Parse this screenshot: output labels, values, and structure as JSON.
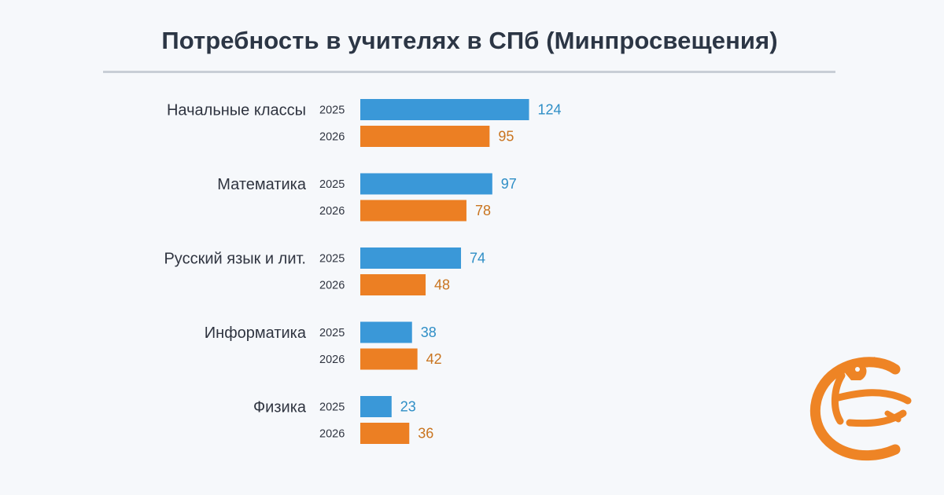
{
  "chart_data": {
    "type": "bar",
    "orientation": "horizontal",
    "title": "Потребность в учителях в СПб (Минпросвещения)",
    "categories": [
      "Начальные классы",
      "Математика",
      "Русский язык и лит.",
      "Информатика",
      "Физика"
    ],
    "series": [
      {
        "year_label": "2025",
        "color": "#3a98d8",
        "label_color": "#2e8ec6",
        "values": [
          124,
          97,
          74,
          38,
          23
        ]
      },
      {
        "year_label": "2026",
        "color": "#ec7f23",
        "label_color": "#c9741f",
        "values": [
          95,
          78,
          48,
          42,
          36
        ]
      }
    ],
    "grid": false,
    "legend": "none"
  },
  "logo": {
    "name": "bird-emblem-icon",
    "color": "#ee8425"
  }
}
